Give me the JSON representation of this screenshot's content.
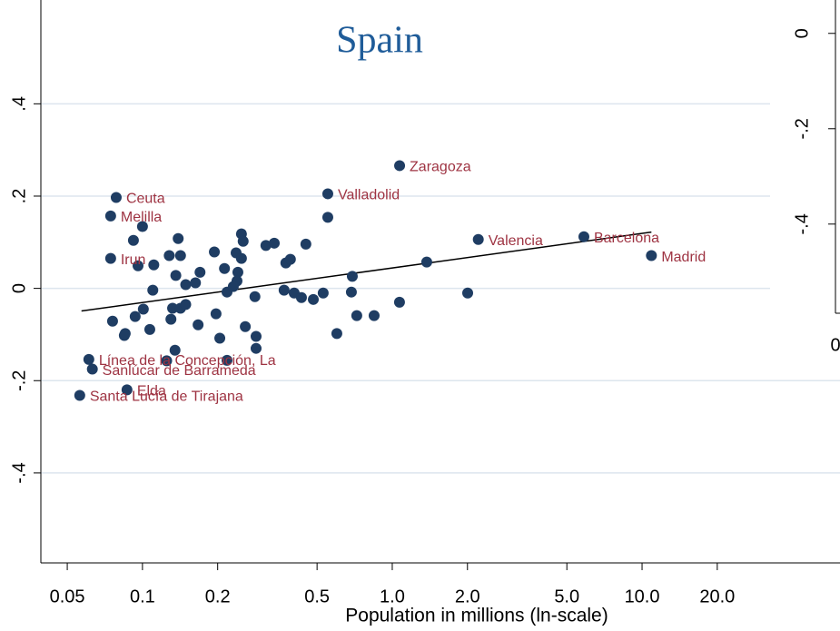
{
  "chart_data": [
    {
      "type": "scatter",
      "title": "Spain",
      "x_label": "Population in millions (ln-scale)",
      "xscale": "log",
      "xlim": [
        0.0392,
        62
      ],
      "ylim": [
        -0.595,
        0.625
      ],
      "grid": true,
      "point_color": "#1f3d63",
      "label_color": "#9e3342",
      "line_color": "#000000",
      "grid_color": "#dde5ee",
      "title_color": "#1f5c99",
      "xticks": [
        0.05,
        0.1,
        0.2,
        0.5,
        {
          "value": 1,
          "label": "1.0"
        },
        {
          "value": 2,
          "label": "2.0"
        },
        {
          "value": 5,
          "label": "5.0"
        },
        {
          "value": 10,
          "label": "10.0"
        },
        {
          "value": 20,
          "label": "20.0"
        }
      ],
      "yticks": [
        {
          "value": -0.4,
          "label": "-.4"
        },
        {
          "value": -0.2,
          "label": "-.2"
        },
        0,
        {
          "value": 0.2,
          "label": ".2"
        },
        {
          "value": 0.4,
          "label": ".4"
        }
      ],
      "points": {
        "x": [
          1.07,
          0.552,
          0.0785,
          0.0746,
          2.21,
          5.85,
          10.9,
          0.0746,
          0.061,
          0.063,
          0.0867,
          0.0561,
          0.092,
          0.1,
          0.096,
          0.111,
          0.128,
          0.139,
          0.142,
          0.136,
          0.11,
          0.149,
          0.163,
          0.17,
          0.194,
          0.213,
          0.237,
          0.241,
          0.239,
          0.249,
          0.253,
          0.249,
          0.218,
          0.231,
          0.282,
          0.312,
          0.337,
          0.369,
          0.375,
          0.391,
          0.405,
          0.433,
          0.483,
          0.451,
          0.529,
          0.552,
          0.692,
          0.686,
          0.6,
          0.721,
          0.846,
          1.069,
          1.374,
          2.004,
          0.0759,
          0.0935,
          0.1008,
          0.0846,
          0.107,
          0.13,
          0.132,
          0.142,
          0.149,
          0.167,
          0.197,
          0.204,
          0.258,
          0.285,
          0.285,
          0.135,
          0.125,
          0.218,
          0.0853
        ],
        "y": [
          0.266,
          0.205,
          0.197,
          0.157,
          0.106,
          0.112,
          0.071,
          0.065,
          -0.154,
          -0.175,
          -0.22,
          -0.232,
          0.104,
          0.134,
          0.049,
          0.051,
          0.071,
          0.108,
          0.071,
          0.028,
          -0.004,
          0.008,
          0.012,
          0.035,
          0.079,
          0.043,
          0.077,
          0.035,
          0.016,
          0.118,
          0.102,
          0.065,
          -0.008,
          0.004,
          -0.018,
          0.093,
          0.098,
          -0.004,
          0.055,
          0.063,
          -0.01,
          -0.02,
          -0.024,
          0.096,
          -0.01,
          0.154,
          0.026,
          -0.008,
          -0.098,
          -0.059,
          -0.059,
          -0.03,
          0.057,
          -0.01,
          -0.071,
          -0.061,
          -0.045,
          -0.102,
          -0.089,
          -0.067,
          -0.043,
          -0.043,
          -0.035,
          -0.079,
          -0.055,
          -0.108,
          -0.083,
          -0.104,
          -0.13,
          -0.134,
          -0.157,
          -0.156,
          -0.098
        ],
        "labels": [
          "Zaragoza",
          "Valladolid",
          "Ceuta",
          "Melilla",
          "Valencia",
          "Barcelona",
          "Madrid",
          "Irun",
          "Línea de la Concepción, La",
          "Sanlúcar de Barrameda",
          "Elda",
          "Santa Lucía de Tirajana"
        ]
      },
      "fit": {
        "x": [
          0.057,
          10.9
        ],
        "y": [
          -0.049,
          0.122
        ]
      }
    },
    {
      "type": "scatter",
      "ylim": [
        -0.587,
        0.07
      ],
      "yticks": [
        0,
        {
          "value": -0.2,
          "label": "-.2"
        },
        {
          "value": -0.4,
          "label": "-.4"
        }
      ],
      "xticks": [
        0
      ]
    }
  ]
}
